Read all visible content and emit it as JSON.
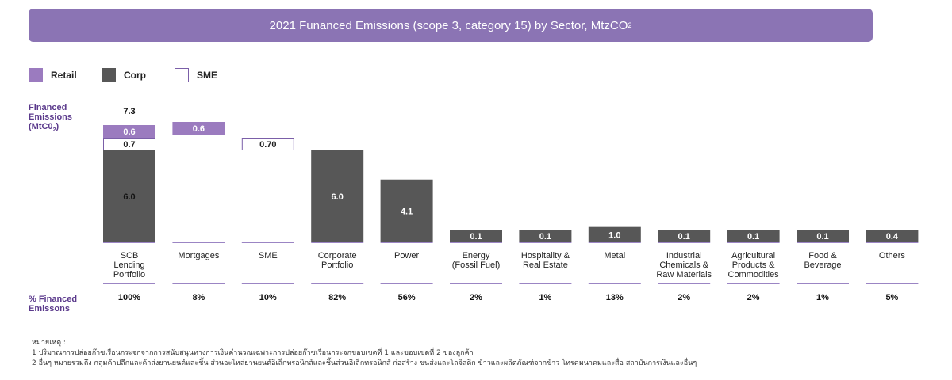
{
  "banner": {
    "title": "2021 Funanced Emissions (scope 3, category 15) by Sector, MtzCO",
    "title_sub": "2"
  },
  "legend": [
    {
      "label": "Retail",
      "color": "#9b7bbf",
      "style": "filled"
    },
    {
      "label": "Corp",
      "color": "#575757",
      "style": "filled"
    },
    {
      "label": "SME",
      "color": "#7b5fa8",
      "style": "outline"
    }
  ],
  "side_labels": {
    "financed_emissions_l1": "Financed",
    "financed_emissions_l2": "Emissions",
    "financed_emissions_l3": "(MtC0",
    "financed_emissions_sub": "2",
    "financed_emissions_end": ")",
    "percent_l1": "% Financed",
    "percent_l2": "Emissons"
  },
  "footnotes": {
    "header": "หมายเหตุ :",
    "note1": "1 ปริมาณการปล่อยก๊าซเรือนกระจกจากการสนับสนุนทางการเงินคำนวณเฉพาะการปล่อยก๊าซเรือนกระจกขอบเขตที่ 1 และขอบเขตที่ 2 ของลูกค้า",
    "note2": "2 อื่นๆ หมายรวมถึง กลุ่มค้าปลีกและค้าส่งยานยนต์และชิ้น ส่วนอะไหล่ยานยนต์อิเล็กทรอนิกส์และชิ้นส่วนอิเล็กทรอนิกส์ ก่อสร้าง ขนส่งและโลจิสติก ข้าวและผลิตภัณฑ์จากข้าว โทรคมนาคมและสื่อ สถาบันการเงินและอื่นๆ"
  },
  "colors": {
    "banner": "#8b74b4",
    "retail": "#9b7bbf",
    "corp": "#575757",
    "sme_border": "#7b5fa8",
    "divider": "#9b85c4",
    "accent_text": "#5b3a8c"
  },
  "chart_data": {
    "type": "bar",
    "title": "2021 Funanced Emissions (scope 3, category 15) by Sector, MtzCO2",
    "categories": [
      [
        "SCB",
        "Lending",
        "Portfolio"
      ],
      [
        "Mortgages"
      ],
      [
        "SME"
      ],
      [
        "Corporate",
        "Portfolio"
      ],
      [
        "Power"
      ],
      [
        "Energy",
        "(Fossil Fuel)"
      ],
      [
        "Hospitality &",
        "Real Estate"
      ],
      [
        "Metal"
      ],
      [
        "Industrial",
        "Chemicals &",
        "Raw Materials"
      ],
      [
        "Agricultural",
        "Products &",
        "Commodities"
      ],
      [
        "Food &",
        "Beverage"
      ],
      [
        "Others"
      ]
    ],
    "segments": [
      [
        {
          "series": "Corp",
          "value": 6.0,
          "label": "6.0"
        },
        {
          "series": "SME",
          "value": 0.7,
          "label": "0.7"
        },
        {
          "series": "Retail",
          "value": 0.6,
          "label": "0.6"
        }
      ],
      [
        {
          "series": "Retail",
          "value": 0.6,
          "label": "0.6"
        }
      ],
      [
        {
          "series": "SME",
          "value": 0.7,
          "label": "0.70"
        }
      ],
      [
        {
          "series": "Corp",
          "value": 6.0,
          "label": "6.0"
        }
      ],
      [
        {
          "series": "Corp",
          "value": 4.1,
          "label": "4.1"
        }
      ],
      [
        {
          "series": "Corp",
          "value": 0.1,
          "label": "0.1"
        }
      ],
      [
        {
          "series": "Corp",
          "value": 0.1,
          "label": "0.1"
        }
      ],
      [
        {
          "series": "Corp",
          "value": 1.0,
          "label": "1.0"
        }
      ],
      [
        {
          "series": "Corp",
          "value": 0.1,
          "label": "0.1"
        }
      ],
      [
        {
          "series": "Corp",
          "value": 0.1,
          "label": "0.1"
        }
      ],
      [
        {
          "series": "Corp",
          "value": 0.1,
          "label": "0.1"
        }
      ],
      [
        {
          "series": "Corp",
          "value": 0.4,
          "label": "0.4"
        }
      ]
    ],
    "total_labels": [
      "7.3",
      "",
      "",
      "",
      "",
      "",
      "",
      "",
      "",
      "",
      "",
      ""
    ],
    "percent_financed": [
      "100%",
      "8%",
      "10%",
      "82%",
      "56%",
      "2%",
      "1%",
      "13%",
      "2%",
      "2%",
      "1%",
      "5%"
    ],
    "ylabel": "Financed Emissions (MtC02)",
    "row_label_bottom": "% Financed Emissons",
    "legend_position": "top-left",
    "grid": false,
    "ylim": [
      0,
      7.3
    ]
  }
}
